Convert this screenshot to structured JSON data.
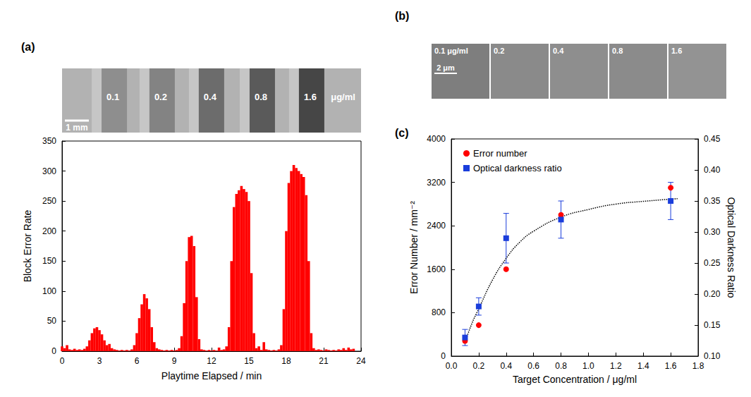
{
  "chart_data": [
    {
      "type": "image",
      "panel_label": "(a)",
      "annotations": [
        "0.1",
        "0.2",
        "0.4",
        "0.8",
        "1.6",
        "μg/ml"
      ],
      "scale_bar": "1 mm"
    },
    {
      "type": "bar",
      "xlabel": "Playtime Elapsed / min",
      "ylabel": "Block Error Rate",
      "color": "#ff0000",
      "grid": false,
      "xlim": [
        0,
        24
      ],
      "xticks": [
        0,
        3,
        6,
        9,
        12,
        15,
        18,
        21,
        24
      ],
      "ylim": [
        0,
        350
      ],
      "yticks": [
        0,
        50,
        100,
        150,
        200,
        250,
        300,
        350
      ],
      "x": [
        0,
        0.2,
        0.4,
        0.6,
        0.8,
        1,
        1.2,
        1.4,
        1.6,
        1.8,
        2,
        2.2,
        2.4,
        2.6,
        2.8,
        3,
        3.2,
        3.4,
        3.6,
        3.8,
        4,
        4.2,
        4.4,
        4.6,
        4.8,
        5,
        5.2,
        5.4,
        5.6,
        5.8,
        6,
        6.2,
        6.4,
        6.6,
        6.8,
        7,
        7.2,
        7.4,
        7.6,
        7.8,
        8,
        8.2,
        8.4,
        8.6,
        8.8,
        9,
        9.2,
        9.4,
        9.6,
        9.8,
        10,
        10.2,
        10.4,
        10.6,
        10.8,
        11,
        11.2,
        11.4,
        11.6,
        11.8,
        12,
        12.2,
        12.4,
        12.6,
        12.8,
        13,
        13.2,
        13.4,
        13.6,
        13.8,
        14,
        14.2,
        14.4,
        14.6,
        14.8,
        15,
        15.2,
        15.4,
        15.6,
        15.8,
        16,
        16.2,
        16.4,
        16.6,
        16.8,
        17,
        17.2,
        17.4,
        17.6,
        17.8,
        18,
        18.2,
        18.4,
        18.6,
        18.8,
        19,
        19.2,
        19.4,
        19.6,
        19.8,
        20,
        20.2,
        20.4,
        20.6,
        20.8,
        21,
        21.2,
        21.4,
        21.6,
        21.8,
        22,
        22.2,
        22.4,
        22.6,
        22.8,
        23,
        23.2,
        23.4
      ],
      "values": [
        8,
        5,
        10,
        3,
        2,
        4,
        2,
        3,
        2,
        4,
        8,
        18,
        30,
        38,
        40,
        35,
        28,
        18,
        10,
        12,
        5,
        3,
        2,
        1,
        2,
        1,
        2,
        1,
        3,
        10,
        30,
        55,
        78,
        95,
        88,
        70,
        40,
        15,
        5,
        3,
        2,
        1,
        2,
        1,
        2,
        1,
        2,
        5,
        25,
        80,
        150,
        190,
        192,
        175,
        90,
        20,
        3,
        2,
        1,
        2,
        1,
        2,
        1,
        6,
        2,
        3,
        8,
        40,
        150,
        240,
        262,
        268,
        275,
        270,
        265,
        250,
        130,
        30,
        5,
        8,
        2,
        15,
        3,
        2,
        1,
        2,
        1,
        3,
        10,
        70,
        200,
        280,
        300,
        310,
        305,
        300,
        295,
        290,
        260,
        150,
        30,
        5,
        2,
        3,
        2,
        1,
        3,
        2,
        1,
        2,
        1,
        3,
        2,
        5,
        2,
        6,
        3,
        4
      ]
    },
    {
      "type": "image",
      "panel_label": "(b)",
      "annotations": [
        "0.1 μg/ml",
        "0.2",
        "0.4",
        "0.8",
        "1.6"
      ],
      "scale_bar": "2 μm"
    },
    {
      "type": "scatter",
      "panel_label": "(c)",
      "xlabel": "Target Concentration / μg/ml",
      "ylabel": "Error Number / mm⁻²",
      "y2label": "Optical Darkness Ratio",
      "legend": "upper left",
      "grid": false,
      "xlim": [
        0,
        1.8
      ],
      "xticks": [
        {
          "value": 0,
          "label": "0.0"
        },
        0.2,
        0.4,
        0.6,
        0.8,
        {
          "value": 1,
          "label": "1.0"
        },
        1.2,
        1.4,
        1.6,
        1.8
      ],
      "ylim": [
        0,
        4000
      ],
      "yticks": [
        0,
        800,
        1600,
        2400,
        3200,
        4000
      ],
      "y2lim": [
        0.1,
        0.45
      ],
      "y2ticks": [
        {
          "value": 0.1,
          "label": "0.10"
        },
        0.15,
        {
          "value": 0.2,
          "label": "0.20"
        },
        0.25,
        {
          "value": 0.3,
          "label": "0.30"
        },
        0.35,
        {
          "value": 0.4,
          "label": "0.40"
        },
        0.45
      ],
      "series": [
        {
          "name": "Error number",
          "type": "scatter",
          "marker": "circle",
          "color": "#ff0000",
          "x": [
            0.1,
            0.2,
            0.4,
            0.8,
            1.6
          ],
          "values": [
            280,
            570,
            1600,
            2600,
            3100
          ]
        },
        {
          "name": "Optical darkness ratio",
          "type": "scatter",
          "marker": "square",
          "color": "#1a3ddb",
          "axis": "y2",
          "x": [
            0.1,
            0.2,
            0.4,
            0.8,
            1.6
          ],
          "values": [
            0.13,
            0.18,
            0.29,
            0.32,
            0.35
          ],
          "error": [
            0.013,
            0.014,
            0.04,
            0.03,
            0.03
          ]
        },
        {
          "type": "line",
          "line_style": "dotted",
          "color": "#000000",
          "x": [
            0.1,
            0.15,
            0.2,
            0.3,
            0.4,
            0.5,
            0.6,
            0.8,
            1,
            1.2,
            1.4,
            1.65
          ],
          "values": [
            250,
            600,
            870,
            1400,
            1800,
            2100,
            2300,
            2560,
            2700,
            2800,
            2850,
            2900
          ]
        }
      ]
    }
  ]
}
